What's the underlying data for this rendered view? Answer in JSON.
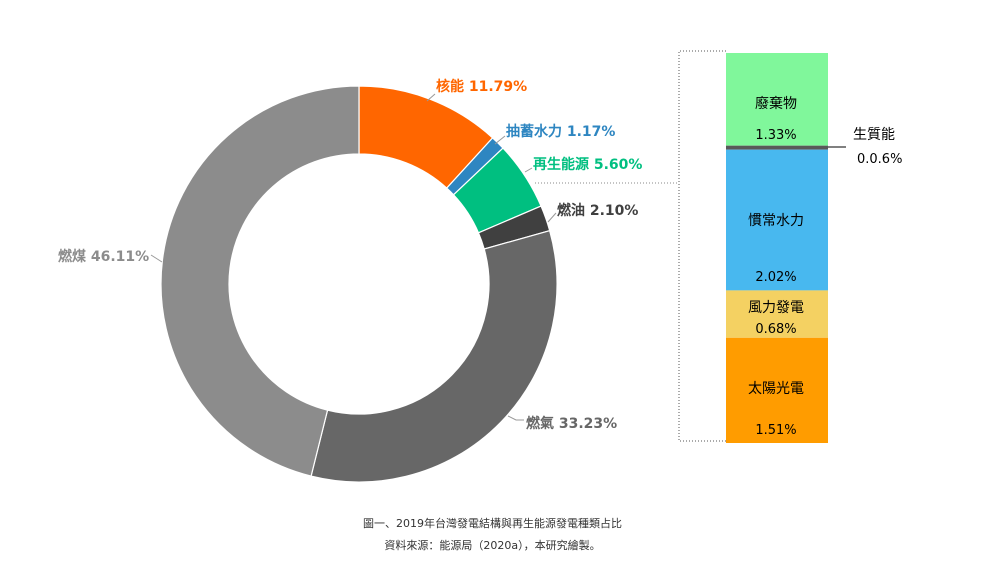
{
  "chart_data": [
    {
      "type": "pie",
      "variant": "donut",
      "slices": [
        {
          "name": "核能",
          "value": 11.79,
          "label": "核能 11.79%",
          "color": "#ff6600"
        },
        {
          "name": "抽蓄水力",
          "value": 1.17,
          "label": "抽蓄水力 1.17%",
          "color": "#2e86c1"
        },
        {
          "name": "再生能源",
          "value": 5.6,
          "label": "再生能源 5.60%",
          "color": "#00bf80"
        },
        {
          "name": "燃油",
          "value": 2.1,
          "label": "燃油 2.10%",
          "color": "#404040"
        },
        {
          "name": "燃氣",
          "value": 33.23,
          "label": "燃氣 33.23%",
          "color": "#676767"
        },
        {
          "name": "燃煤",
          "value": 46.11,
          "label": "燃煤 46.11%",
          "color": "#8c8c8c"
        }
      ]
    },
    {
      "type": "bar",
      "variant": "stacked-100",
      "segments": [
        {
          "name": "廢棄物",
          "value": 1.33,
          "value_label": "1.33%",
          "color": "#80f79b"
        },
        {
          "name": "生質能",
          "value": 0.06,
          "value_label": "0.0.6%",
          "color": "#595959"
        },
        {
          "name": "慣常水力",
          "value": 2.02,
          "value_label": "2.02%",
          "color": "#48b8ef"
        },
        {
          "name": "風力發電",
          "value": 0.68,
          "value_label": "0.68%",
          "color": "#f4d162"
        },
        {
          "name": "太陽光電",
          "value": 1.51,
          "value_label": "1.51%",
          "color": "#ff9c00"
        }
      ]
    }
  ],
  "caption": {
    "line1": "圖一、2019年台灣發電結構與再生能源發電種類占比",
    "line2": "資料來源：能源局（2020a），本研究繪製。"
  }
}
